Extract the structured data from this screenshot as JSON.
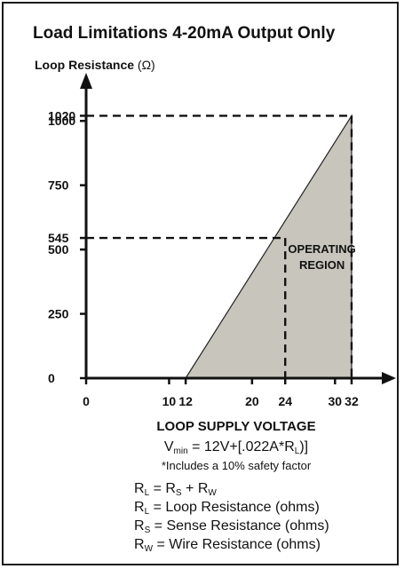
{
  "colors": {
    "region_fill": "#c8c5bd",
    "ink": "#111111",
    "frame": "#1a1a1a"
  },
  "chart_data": {
    "type": "area",
    "title": "Load Limitations 4-20mA Output Only",
    "ylabel_text": "Loop Resistance",
    "ylabel_unit": "(Ω)",
    "xlabel": "LOOP SUPPLY VOLTAGE",
    "xlim": [
      0,
      35
    ],
    "ylim": [
      0,
      1125
    ],
    "x_ticks": [
      0,
      10,
      12,
      20,
      24,
      30,
      32
    ],
    "y_ticks": [
      0,
      250,
      500,
      545,
      750,
      1000,
      1020
    ],
    "grid": false,
    "series": [
      {
        "x": [
          12,
          32
        ],
        "y": [
          0,
          1020
        ],
        "fill": "region_fill"
      }
    ],
    "reference_points": [
      {
        "x": 24,
        "y": 545
      },
      {
        "x": 32,
        "y": 1020
      }
    ],
    "region_label": [
      "OPERATING",
      "REGION"
    ]
  },
  "notes": {
    "vmin_main": "V",
    "vmin_sub": "min",
    "vmin_mid": " = 12V+[.022A*R",
    "vmin_sub2": "L",
    "vmin_end": ")]",
    "safety": "*Includes a 10% safety factor",
    "lines": [
      {
        "lhs": "R",
        "lhs_sub": "L",
        "eq": " = R",
        "a_sub": "S",
        "plus": " + R",
        "b_sub": "W",
        "rest": ""
      },
      {
        "lhs": "R",
        "lhs_sub": "L",
        "eq": " = Loop Resistance (ohms)",
        "a_sub": "",
        "plus": "",
        "b_sub": "",
        "rest": ""
      },
      {
        "lhs": "R",
        "lhs_sub": "S",
        "eq": " = Sense Resistance (ohms)",
        "a_sub": "",
        "plus": "",
        "b_sub": "",
        "rest": ""
      },
      {
        "lhs": "R",
        "lhs_sub": "W",
        "eq": " = Wire Resistance (ohms)",
        "a_sub": "",
        "plus": "",
        "b_sub": "",
        "rest": ""
      }
    ]
  }
}
